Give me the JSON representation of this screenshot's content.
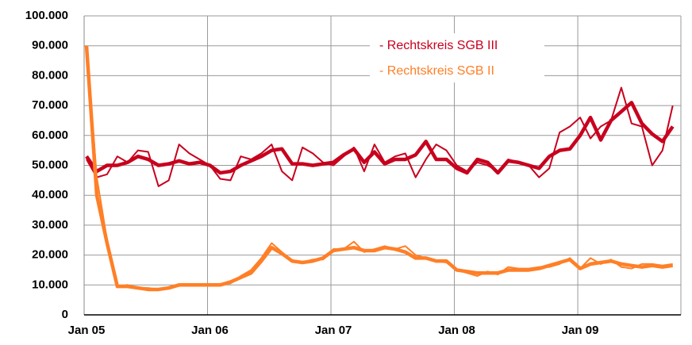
{
  "chart_data": {
    "type": "line",
    "categories": [
      "Jan 05",
      null,
      null,
      null,
      null,
      null,
      null,
      null,
      null,
      null,
      null,
      null,
      "Jan 06",
      null,
      null,
      null,
      null,
      null,
      null,
      null,
      null,
      null,
      null,
      null,
      "Jan 07",
      null,
      null,
      null,
      null,
      null,
      null,
      null,
      null,
      null,
      null,
      null,
      "Jan 08",
      null,
      null,
      null,
      null,
      null,
      null,
      null,
      null,
      null,
      null,
      null,
      "Jan 09",
      null,
      null,
      null,
      null,
      null,
      null,
      null,
      null,
      null
    ],
    "series": [
      {
        "name": "- Rechtskreis SGB III",
        "color": "#c8001e",
        "values": [
          52000,
          46000,
          47000,
          53000,
          51000,
          55000,
          54500,
          43000,
          45000,
          57000,
          54000,
          52000,
          50000,
          45500,
          45000,
          53000,
          52000,
          54000,
          57000,
          48000,
          45000,
          56000,
          54000,
          51000,
          50000,
          53000,
          56000,
          48000,
          57000,
          51000,
          53000,
          54000,
          46000,
          52000,
          57000,
          55000,
          50000,
          48000,
          51000,
          50000,
          48000,
          52000,
          51000,
          50000,
          46000,
          49000,
          61000,
          63000,
          66000,
          59000,
          63000,
          65000,
          76000,
          64000,
          63000,
          50000,
          55000,
          70000
        ],
        "trend": [
          53000,
          48000,
          50000,
          50000,
          51000,
          53000,
          52000,
          50000,
          50500,
          51500,
          50500,
          51000,
          50000,
          47500,
          48000,
          50000,
          51500,
          53000,
          55000,
          55500,
          50500,
          50500,
          50000,
          50500,
          51000,
          53500,
          55500,
          51000,
          54500,
          50500,
          52000,
          52000,
          53500,
          58000,
          52000,
          52000,
          49000,
          47500,
          52000,
          51000,
          47500,
          51500,
          51000,
          50000,
          49000,
          53000,
          55000,
          55500,
          60000,
          66000,
          58500,
          65000,
          68000,
          71000,
          64000,
          60500,
          58000,
          63000
        ]
      },
      {
        "name": "- Rechtskreis SGB II",
        "color": "#ff7f27",
        "values": [
          90000,
          46000,
          25000,
          9500,
          10000,
          9000,
          9000,
          8500,
          9000,
          10000,
          10000,
          10000,
          10000,
          10000,
          10500,
          13000,
          15000,
          19000,
          24000,
          21000,
          18000,
          17500,
          18500,
          18500,
          22000,
          22000,
          24500,
          21000,
          22000,
          23000,
          22000,
          23000,
          20000,
          19000,
          18000,
          17500,
          15000,
          14000,
          13000,
          14500,
          13500,
          16000,
          15500,
          15500,
          16000,
          16000,
          17000,
          19000,
          15500,
          19000,
          17000,
          18500,
          16000,
          15500,
          17000,
          17000,
          16500,
          17000
        ],
        "trend": [
          90000,
          40000,
          24000,
          9500,
          9500,
          9000,
          8500,
          8500,
          9000,
          10000,
          10000,
          10000,
          10000,
          10000,
          11000,
          12500,
          14000,
          18000,
          22500,
          20500,
          18000,
          17500,
          18000,
          19000,
          21500,
          22000,
          22500,
          21500,
          21500,
          22500,
          22000,
          21000,
          19000,
          19000,
          18000,
          18000,
          15000,
          14500,
          14000,
          14000,
          14000,
          15000,
          15000,
          15000,
          15500,
          16500,
          17500,
          18500,
          15500,
          17000,
          17500,
          18000,
          17000,
          16500,
          16000,
          16500,
          16000,
          16500
        ]
      }
    ],
    "ylim": [
      0,
      100000
    ],
    "yticks": [
      0,
      {
        "value": 10000,
        "label": "10.000"
      },
      {
        "value": 20000,
        "label": "20.000"
      },
      {
        "value": 30000,
        "label": "30.000"
      },
      {
        "value": 40000,
        "label": "40.000"
      },
      {
        "value": 50000,
        "label": "50.000"
      },
      {
        "value": 60000,
        "label": "60.000"
      },
      {
        "value": 70000,
        "label": "70.000"
      },
      {
        "value": 80000,
        "label": "80.000"
      },
      {
        "value": 90000,
        "label": "90.000"
      },
      {
        "value": 100000,
        "label": "100.000"
      }
    ],
    "grid": true
  }
}
